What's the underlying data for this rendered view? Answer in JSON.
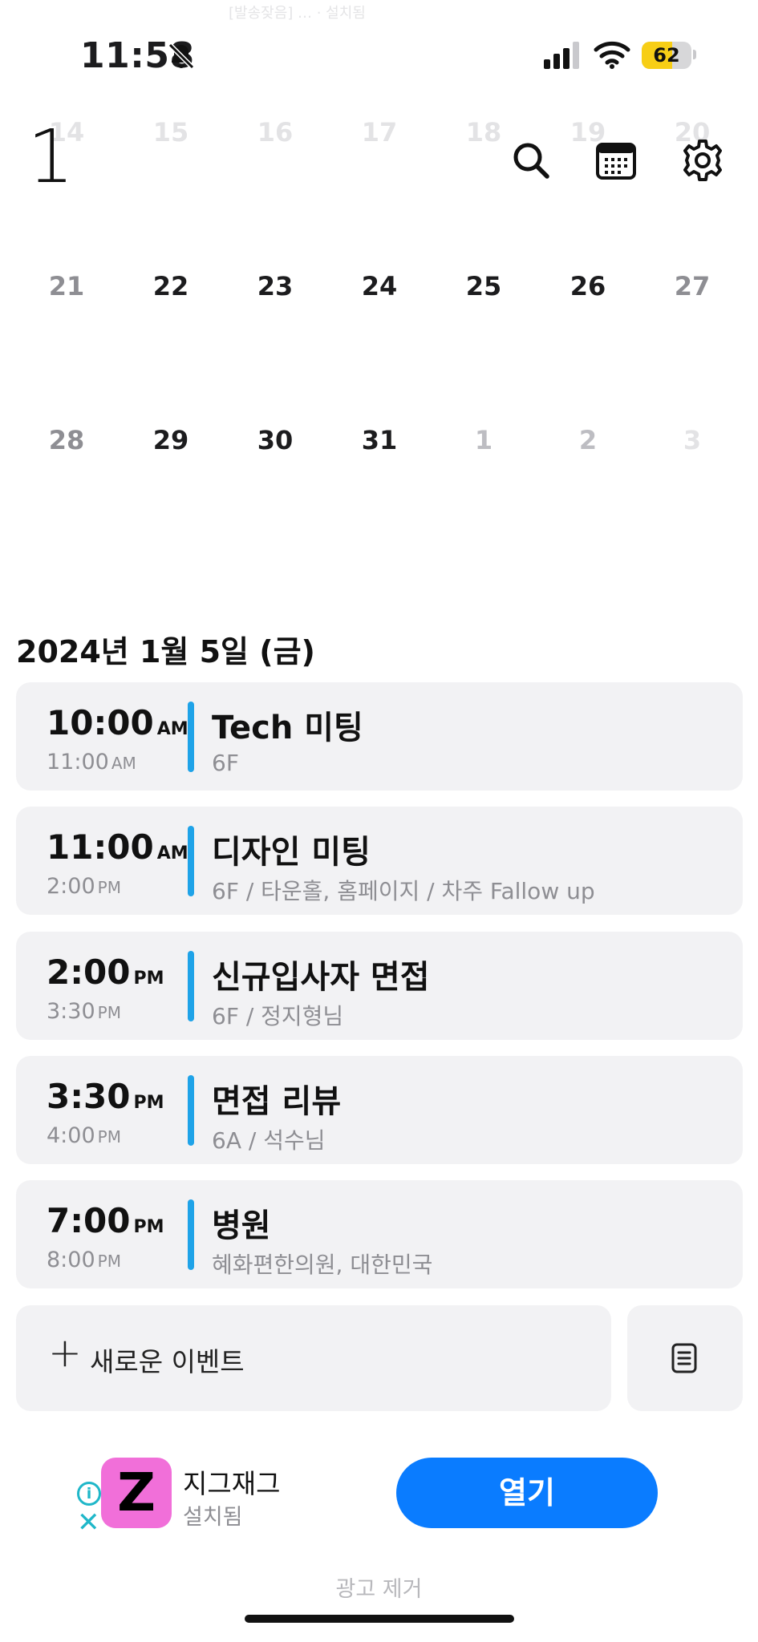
{
  "status_bar": {
    "time": "11:58",
    "battery": 62
  },
  "ghost_ad_text": "[발송잦음] … · 설치됨",
  "calendar": {
    "month": "1",
    "rows": [
      {
        "days": [
          "14",
          "15",
          "16",
          "17",
          "18",
          "19",
          "20"
        ]
      },
      {
        "days": [
          "21",
          "22",
          "23",
          "24",
          "25",
          "26",
          "27"
        ]
      },
      {
        "days": [
          "28",
          "29",
          "30",
          "31",
          "1",
          "2",
          "3"
        ]
      }
    ]
  },
  "selected_date": "2024년 1월 5일 (금)",
  "events": [
    {
      "start": "10:00",
      "start_ampm": "AM",
      "end": "11:00",
      "end_ampm": "AM",
      "title": "Tech 미팅",
      "subtitle": "6F"
    },
    {
      "start": "11:00",
      "start_ampm": "AM",
      "end": "2:00",
      "end_ampm": "PM",
      "title": "디자인 미팅",
      "subtitle": "6F / 타운홀, 홈페이지 / 차주 Fallow up"
    },
    {
      "start": "2:00",
      "start_ampm": "PM",
      "end": "3:30",
      "end_ampm": "PM",
      "title": "신규입사자 면접",
      "subtitle": "6F / 정지형님"
    },
    {
      "start": "3:30",
      "start_ampm": "PM",
      "end": "4:00",
      "end_ampm": "PM",
      "title": "면접 리뷰",
      "subtitle": "6A / 석수님"
    },
    {
      "start": "7:00",
      "start_ampm": "PM",
      "end": "8:00",
      "end_ampm": "PM",
      "title": "병원",
      "subtitle": "혜화편한의원, 대한민국"
    }
  ],
  "new_event": {
    "plus": "+",
    "label": "새로운 이벤트"
  },
  "ad": {
    "logo_letter": "Z",
    "app_name": "지그재그",
    "status": "설치됨",
    "open_label": "열기",
    "info_glyph": "i",
    "close_glyph": "✕"
  },
  "remove_ad_label": "광고 제거",
  "colors": {
    "event_bar": "#1fa3e8",
    "open_button": "#0a7cff",
    "battery_fill": "#f7ce16",
    "ad_logo_bg": "#f16fd9"
  }
}
